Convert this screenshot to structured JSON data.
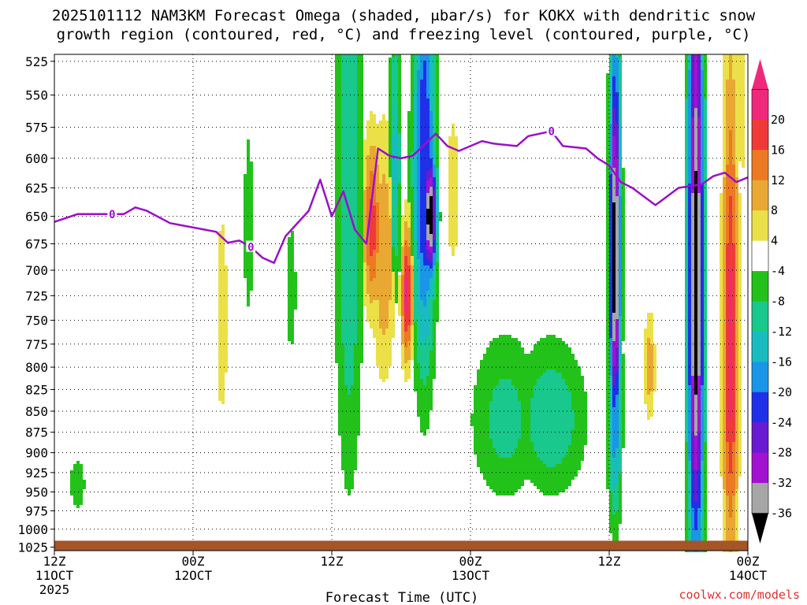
{
  "chart_data": {
    "type": "heatmap",
    "title_line1": "2025101112 NAM3KM Forecast Omega (shaded, μbar/s) for KOKX with dendritic snow",
    "title_line2": "growth region (contoured, red, °C) and freezing level (contoured, purple, °C)",
    "xlabel": "Forecast Time (UTC)",
    "credit": "coolwx.com/models",
    "x_range_hours": [
      0,
      60
    ],
    "x_ticks": [
      {
        "hour": 0,
        "l1": "12Z",
        "l2": "11OCT",
        "l3": "2025"
      },
      {
        "hour": 12,
        "l1": "00Z",
        "l2": "12OCT",
        "l3": ""
      },
      {
        "hour": 24,
        "l1": "12Z",
        "l2": "",
        "l3": ""
      },
      {
        "hour": 36,
        "l1": "00Z",
        "l2": "13OCT",
        "l3": ""
      },
      {
        "hour": 48,
        "l1": "12Z",
        "l2": "",
        "l3": ""
      },
      {
        "hour": 60,
        "l1": "00Z",
        "l2": "14OCT",
        "l3": ""
      }
    ],
    "y_range_mb": [
      1030,
      520
    ],
    "y_ticks": [
      525,
      550,
      575,
      600,
      625,
      650,
      675,
      700,
      725,
      750,
      775,
      800,
      825,
      850,
      875,
      900,
      925,
      950,
      975,
      1000,
      1025
    ],
    "grid": true,
    "colorbar": {
      "labels": [
        "20",
        "16",
        "12",
        "8",
        "4",
        "-4",
        "-8",
        "-12",
        "-16",
        "-20",
        "-24",
        "-28",
        "-32",
        "-36"
      ],
      "bins": [
        {
          "lo": 20,
          "hi": 24,
          "color": "#f0287c"
        },
        {
          "lo": 16,
          "hi": 20,
          "color": "#f03a3a"
        },
        {
          "lo": 12,
          "hi": 16,
          "color": "#ec7a22"
        },
        {
          "lo": 8,
          "hi": 12,
          "color": "#e8a832"
        },
        {
          "lo": 4,
          "hi": 8,
          "color": "#ece048"
        },
        {
          "lo": -4,
          "hi": 4,
          "color": "#ffffff"
        },
        {
          "lo": -8,
          "hi": -4,
          "color": "#22c21a"
        },
        {
          "lo": -12,
          "hi": -8,
          "color": "#18c88c"
        },
        {
          "lo": -16,
          "hi": -12,
          "color": "#18bcc0"
        },
        {
          "lo": -20,
          "hi": -16,
          "color": "#1a96e8"
        },
        {
          "lo": -24,
          "hi": -20,
          "color": "#2030e8"
        },
        {
          "lo": -28,
          "hi": -24,
          "color": "#6a1ad0"
        },
        {
          "lo": -32,
          "hi": -28,
          "color": "#a212d0"
        },
        {
          "lo": -36,
          "hi": -32,
          "color": "#a6a6a6"
        },
        {
          "lo": -40,
          "hi": -36,
          "color": "#000000"
        }
      ]
    },
    "omega_features": [
      {
        "h": 2.0,
        "p": 940,
        "dh": 0.8,
        "dp": 40,
        "v": -7
      },
      {
        "h": 14.5,
        "p": 750,
        "dh": 0.7,
        "dp": 150,
        "v": 6
      },
      {
        "h": 16.8,
        "p": 660,
        "dh": 0.6,
        "dp": 120,
        "v": -6
      },
      {
        "h": 20.5,
        "p": 720,
        "dh": 0.6,
        "dp": 90,
        "v": -6
      },
      {
        "h": 25.5,
        "p": 640,
        "dh": 1.2,
        "dp": 300,
        "v": -12
      },
      {
        "h": 27.5,
        "p": 660,
        "dh": 0.8,
        "dp": 80,
        "v": 18
      },
      {
        "h": 28.5,
        "p": 690,
        "dh": 1.0,
        "dp": 120,
        "v": 12
      },
      {
        "h": 30.5,
        "p": 725,
        "dh": 0.5,
        "dp": 70,
        "v": 22
      },
      {
        "h": 32.0,
        "p": 610,
        "dh": 1.0,
        "dp": 200,
        "v": -24
      },
      {
        "h": 32.5,
        "p": 650,
        "dh": 0.6,
        "dp": 60,
        "v": -40
      },
      {
        "h": 29.5,
        "p": 600,
        "dh": 0.5,
        "dp": 120,
        "v": -14
      },
      {
        "h": 34.5,
        "p": 630,
        "dh": 0.8,
        "dp": 90,
        "v": 6
      },
      {
        "h": 39.0,
        "p": 860,
        "dh": 3.0,
        "dp": 100,
        "v": -10
      },
      {
        "h": 43.0,
        "p": 860,
        "dh": 3.0,
        "dp": 90,
        "v": -12
      },
      {
        "h": 48.5,
        "p": 690,
        "dh": 0.5,
        "dp": 190,
        "v": -40
      },
      {
        "h": 48.5,
        "p": 840,
        "dh": 0.6,
        "dp": 150,
        "v": -20
      },
      {
        "h": 51.5,
        "p": 800,
        "dh": 0.5,
        "dp": 60,
        "v": 11
      },
      {
        "h": 55.5,
        "p": 720,
        "dh": 0.7,
        "dp": 340,
        "v": -40
      },
      {
        "h": 58.5,
        "p": 780,
        "dh": 0.7,
        "dp": 260,
        "v": 22
      },
      {
        "h": 59.5,
        "p": 560,
        "dh": 0.4,
        "dp": 60,
        "v": 8
      }
    ],
    "freezing_level": {
      "label": "0",
      "hours": [
        0,
        2,
        6,
        7,
        8,
        10,
        11,
        13,
        14,
        15,
        16,
        17,
        18,
        19,
        20,
        22,
        23,
        24,
        25,
        26,
        27,
        28,
        29,
        30,
        31,
        33,
        34,
        35,
        36,
        37,
        38,
        40,
        41,
        43,
        44,
        46,
        47,
        48,
        49,
        50,
        52,
        54,
        56,
        57,
        58,
        59,
        60
      ],
      "mb": [
        655,
        648,
        648,
        642,
        645,
        656,
        658,
        662,
        664,
        674,
        672,
        678,
        688,
        693,
        668,
        645,
        618,
        650,
        628,
        662,
        675,
        592,
        598,
        600,
        598,
        580,
        590,
        594,
        590,
        586,
        588,
        590,
        582,
        578,
        590,
        592,
        600,
        606,
        620,
        625,
        640,
        625,
        622,
        615,
        612,
        620,
        616
      ]
    }
  }
}
